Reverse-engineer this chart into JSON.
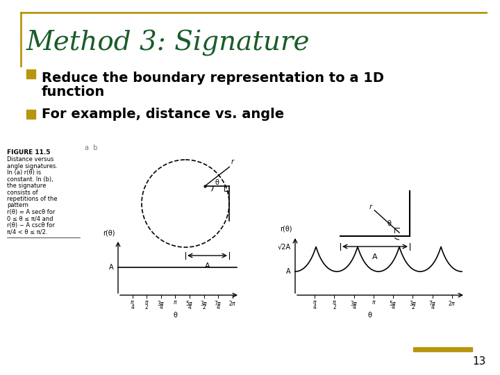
{
  "title": "Method 3: Signature",
  "title_color": "#1a5c2a",
  "title_border_color": "#b8960c",
  "bullet_color": "#b8960c",
  "bullet1_line1": "Reduce the boundary representation to a 1D",
  "bullet1_line2": "function",
  "bullet2": "For example, distance vs. angle",
  "bg_color": "#ffffff",
  "text_color": "#000000",
  "page_number": "13",
  "page_num_bar_color": "#b8960c"
}
